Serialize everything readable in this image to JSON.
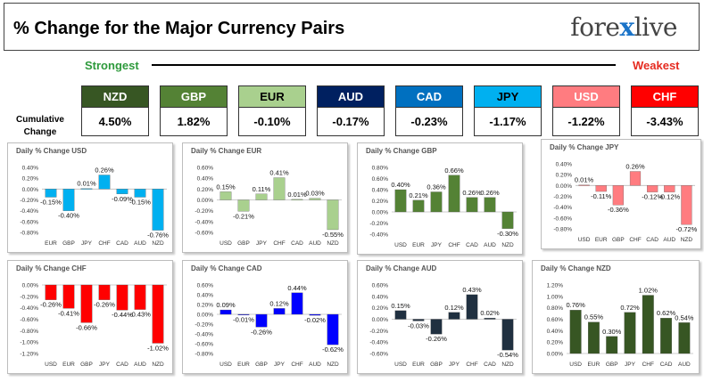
{
  "header": {
    "title": "% Change for the Major Currency Pairs",
    "logo_prefix": "fore",
    "logo_x": "x",
    "logo_suffix": "live"
  },
  "ranking": {
    "strongest_label": "Strongest",
    "weakest_label": "Weakest",
    "cumulative_label_line1": "Cumulative",
    "cumulative_label_line2": "Change"
  },
  "currencies": [
    {
      "code": "NZD",
      "change": "4.50%",
      "bg": "#375623",
      "fg": "#ffffff"
    },
    {
      "code": "GBP",
      "change": "1.82%",
      "bg": "#548235",
      "fg": "#ffffff"
    },
    {
      "code": "EUR",
      "change": "-0.10%",
      "bg": "#a9d08e",
      "fg": "#000000"
    },
    {
      "code": "AUD",
      "change": "-0.17%",
      "bg": "#002060",
      "fg": "#ffffff"
    },
    {
      "code": "CAD",
      "change": "-0.23%",
      "bg": "#0070c0",
      "fg": "#ffffff"
    },
    {
      "code": "JPY",
      "change": "-1.17%",
      "bg": "#00b0f0",
      "fg": "#000000"
    },
    {
      "code": "USD",
      "change": "-1.22%",
      "bg": "#ff7c80",
      "fg": "#ffffff"
    },
    {
      "code": "CHF",
      "change": "-3.43%",
      "bg": "#ff0000",
      "fg": "#ffffff"
    }
  ],
  "chart_data": [
    {
      "type": "bar",
      "title": "Daily % Change USD",
      "categories": [
        "EUR",
        "GBP",
        "JPY",
        "CHF",
        "CAD",
        "AUD",
        "NZD"
      ],
      "values": [
        -0.15,
        -0.4,
        0.01,
        0.26,
        -0.09,
        -0.15,
        -0.76
      ],
      "labels": [
        "-0.15%",
        "-0.40%",
        "0.01%",
        "0.26%",
        "-0.09%",
        "-0.15%",
        "-0.76%"
      ],
      "yticks": [
        "0.40%",
        "0.20%",
        "0.00%",
        "-0.20%",
        "-0.40%",
        "-0.60%",
        "-0.80%"
      ],
      "ylim": [
        -0.8,
        0.4
      ],
      "color": "#00b0f0"
    },
    {
      "type": "bar",
      "title": "Daily % Change EUR",
      "categories": [
        "USD",
        "GBP",
        "JPY",
        "CHF",
        "CAD",
        "AUD",
        "NZD"
      ],
      "values": [
        0.15,
        -0.21,
        0.11,
        0.41,
        0.01,
        0.03,
        -0.55
      ],
      "labels": [
        "0.15%",
        "-0.21%",
        "0.11%",
        "0.41%",
        "0.01%",
        "0.03%",
        "-0.55%"
      ],
      "yticks": [
        "0.60%",
        "0.40%",
        "0.20%",
        "0.00%",
        "-0.20%",
        "-0.40%",
        "-0.60%"
      ],
      "ylim": [
        -0.6,
        0.6
      ],
      "color": "#a9d08e"
    },
    {
      "type": "bar",
      "title": "Daily % Change GBP",
      "categories": [
        "USD",
        "EUR",
        "JPY",
        "CHF",
        "CAD",
        "AUD",
        "NZD"
      ],
      "values": [
        0.4,
        0.21,
        0.36,
        0.66,
        0.26,
        0.26,
        -0.3
      ],
      "labels": [
        "0.40%",
        "0.21%",
        "0.36%",
        "0.66%",
        "0.26%",
        "0.26%",
        "-0.30%"
      ],
      "yticks": [
        "0.80%",
        "0.60%",
        "0.40%",
        "0.20%",
        "0.00%",
        "-0.20%",
        "-0.40%"
      ],
      "ylim": [
        -0.4,
        0.8
      ],
      "color": "#548235"
    },
    {
      "type": "bar",
      "title": "Daily % Change JPY",
      "categories": [
        "USD",
        "EUR",
        "GBP",
        "CHF",
        "CAD",
        "AUD",
        "NZD"
      ],
      "values": [
        0.01,
        -0.11,
        -0.36,
        0.26,
        -0.12,
        -0.12,
        -0.72
      ],
      "labels": [
        "0.01%",
        "-0.11%",
        "-0.36%",
        "0.26%",
        "-0.12%",
        "-0.12%",
        "-0.72%"
      ],
      "yticks": [
        "0.40%",
        "0.20%",
        "0.00%",
        "-0.20%",
        "-0.40%",
        "-0.60%",
        "-0.80%"
      ],
      "ylim": [
        -0.8,
        0.4
      ],
      "color": "#ff7c80"
    },
    {
      "type": "bar",
      "title": "Daily % Change CHF",
      "categories": [
        "USD",
        "EUR",
        "GBP",
        "JPY",
        "CAD",
        "AUD",
        "NZD"
      ],
      "values": [
        -0.26,
        -0.41,
        -0.66,
        -0.26,
        -0.44,
        -0.43,
        -1.02
      ],
      "labels": [
        "-0.26%",
        "-0.41%",
        "-0.66%",
        "-0.26%",
        "-0.44%",
        "-0.43%",
        "-1.02%"
      ],
      "yticks": [
        "0.00%",
        "-0.20%",
        "-0.40%",
        "-0.60%",
        "-0.80%",
        "-1.00%",
        "-1.20%"
      ],
      "ylim": [
        -1.2,
        0
      ],
      "color": "#ff0000"
    },
    {
      "type": "bar",
      "title": "Daily % Change CAD",
      "categories": [
        "USD",
        "EUR",
        "GBP",
        "JPY",
        "CHF",
        "AUD",
        "NZD"
      ],
      "values": [
        0.09,
        -0.01,
        -0.26,
        0.12,
        0.44,
        -0.02,
        -0.62
      ],
      "labels": [
        "0.09%",
        "-0.01%",
        "-0.26%",
        "0.12%",
        "0.44%",
        "-0.02%",
        "-0.62%"
      ],
      "yticks": [
        "0.60%",
        "0.40%",
        "0.20%",
        "0.00%",
        "-0.20%",
        "-0.40%",
        "-0.60%",
        "-0.80%"
      ],
      "ylim": [
        -0.8,
        0.6
      ],
      "color": "#0000ff"
    },
    {
      "type": "bar",
      "title": "Daily % Change AUD",
      "categories": [
        "USD",
        "EUR",
        "GBP",
        "JPY",
        "CHF",
        "CAD",
        "NZD"
      ],
      "values": [
        0.15,
        -0.03,
        -0.26,
        0.12,
        0.43,
        0.02,
        -0.54
      ],
      "labels": [
        "0.15%",
        "-0.03%",
        "-0.26%",
        "0.12%",
        "0.43%",
        "0.02%",
        "-0.54%"
      ],
      "yticks": [
        "0.60%",
        "0.40%",
        "0.20%",
        "0.00%",
        "-0.20%",
        "-0.40%",
        "-0.60%"
      ],
      "ylim": [
        -0.6,
        0.6
      ],
      "color": "#203040"
    },
    {
      "type": "bar",
      "title": "Daily % Change NZD",
      "categories": [
        "USD",
        "EUR",
        "GBP",
        "JPY",
        "CHF",
        "CAD",
        "AUD"
      ],
      "values": [
        0.76,
        0.55,
        0.3,
        0.72,
        1.02,
        0.62,
        0.54
      ],
      "labels": [
        "0.76%",
        "0.55%",
        "0.30%",
        "0.72%",
        "1.02%",
        "0.62%",
        "0.54%"
      ],
      "yticks": [
        "1.20%",
        "1.00%",
        "0.80%",
        "0.60%",
        "0.40%",
        "0.20%",
        "0.00%"
      ],
      "ylim": [
        0,
        1.2
      ],
      "color": "#375623"
    }
  ]
}
